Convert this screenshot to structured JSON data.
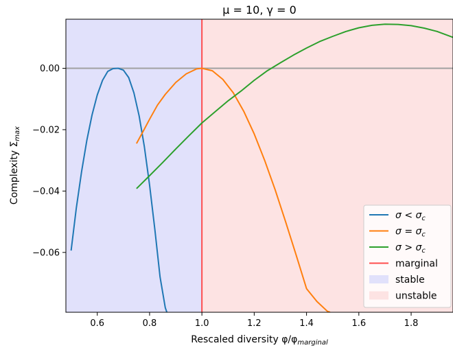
{
  "chart_data": {
    "type": "line",
    "title": "μ = 10, γ = 0",
    "xlabel": "Rescaled diversity φ/φ",
    "xlabel_sub": "marginal",
    "ylabel": "Complexity Σ",
    "ylabel_sub": "max",
    "xlim": [
      0.48,
      1.96
    ],
    "ylim": [
      -0.0795,
      0.016
    ],
    "x_ticks": [
      0.6,
      0.8,
      1.0,
      1.2,
      1.4,
      1.6,
      1.8
    ],
    "x_tick_labels": [
      "0.6",
      "0.8",
      "1.0",
      "1.2",
      "1.4",
      "1.6",
      "1.8"
    ],
    "y_ticks": [
      0.0,
      -0.02,
      -0.04,
      -0.06
    ],
    "y_tick_labels": [
      "0.00",
      "−0.02",
      "−0.04",
      "−0.06"
    ],
    "regions": [
      {
        "name": "stable",
        "x_from": 0.48,
        "x_to": 1.0,
        "color": "#e1e1fb"
      },
      {
        "name": "unstable",
        "x_from": 1.0,
        "x_to": 1.96,
        "color": "#fde3e3"
      }
    ],
    "vertical_line": {
      "name": "marginal",
      "x": 1.0,
      "color": "#ff4d4d"
    },
    "horizontal_line": {
      "y": 0.0,
      "color": "#a0a0a0"
    },
    "series": [
      {
        "name": "σ < σ",
        "name_sub": "c",
        "color": "#1f77b4",
        "x": [
          0.5,
          0.52,
          0.54,
          0.56,
          0.58,
          0.6,
          0.62,
          0.64,
          0.66,
          0.68,
          0.7,
          0.72,
          0.74,
          0.76,
          0.78,
          0.8,
          0.82,
          0.84,
          0.86,
          0.866
        ],
        "y": [
          -0.0594,
          -0.0455,
          -0.0336,
          -0.0235,
          -0.0152,
          -0.0087,
          -0.0039,
          -0.001,
          -0.0001,
          0.0,
          -0.0006,
          -0.003,
          -0.008,
          -0.0155,
          -0.0255,
          -0.038,
          -0.0525,
          -0.068,
          -0.078,
          -0.0795
        ]
      },
      {
        "name": "σ = σ",
        "name_sub": "c",
        "color": "#ff7f0e",
        "x": [
          0.75,
          0.78,
          0.8,
          0.83,
          0.86,
          0.9,
          0.94,
          0.98,
          1.0,
          1.04,
          1.08,
          1.12,
          1.16,
          1.2,
          1.24,
          1.28,
          1.32,
          1.36,
          1.4,
          1.44,
          1.48,
          1.49
        ],
        "y": [
          -0.0245,
          -0.0198,
          -0.0166,
          -0.012,
          -0.0085,
          -0.0046,
          -0.0018,
          -0.0002,
          0.0,
          -0.0008,
          -0.0036,
          -0.008,
          -0.014,
          -0.0214,
          -0.03,
          -0.0396,
          -0.05,
          -0.0608,
          -0.0718,
          -0.076,
          -0.0792,
          -0.0795
        ]
      },
      {
        "name": "σ > σ",
        "name_sub": "c",
        "color": "#2ca02c",
        "x": [
          0.75,
          0.8,
          0.85,
          0.9,
          0.95,
          1.0,
          1.05,
          1.1,
          1.15,
          1.2,
          1.25,
          1.3,
          1.35,
          1.4,
          1.45,
          1.5,
          1.55,
          1.6,
          1.65,
          1.7,
          1.75,
          1.8,
          1.85,
          1.9,
          1.96
        ],
        "y": [
          -0.0392,
          -0.035,
          -0.0307,
          -0.0263,
          -0.022,
          -0.0178,
          -0.0142,
          -0.0106,
          -0.0074,
          -0.0039,
          -0.0008,
          0.0018,
          0.0043,
          0.0066,
          0.0087,
          0.0104,
          0.012,
          0.0132,
          0.014,
          0.0144,
          0.0143,
          0.0139,
          0.0131,
          0.012,
          0.0101
        ]
      }
    ],
    "legend": {
      "position": "lower-right",
      "entries": [
        {
          "label": "σ < σ",
          "sub": "c",
          "kind": "line",
          "color": "#1f77b4"
        },
        {
          "label": "σ = σ",
          "sub": "c",
          "kind": "line",
          "color": "#ff7f0e"
        },
        {
          "label": "σ > σ",
          "sub": "c",
          "kind": "line",
          "color": "#2ca02c"
        },
        {
          "label": "marginal",
          "sub": "",
          "kind": "line",
          "color": "#ff4d4d"
        },
        {
          "label": "stable",
          "sub": "",
          "kind": "patch",
          "color": "#e1e1fb"
        },
        {
          "label": "unstable",
          "sub": "",
          "kind": "patch",
          "color": "#fde3e3"
        }
      ]
    }
  }
}
